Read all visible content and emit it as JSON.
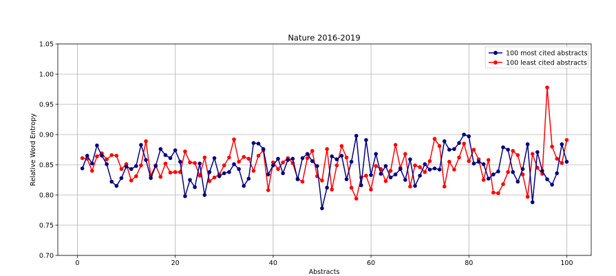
{
  "chart_data": {
    "type": "line",
    "title": "Nature 2016-2019",
    "xlabel": "Abstracts",
    "ylabel": "Relative Word Entropy",
    "xlim": [
      -4,
      105
    ],
    "ylim": [
      0.7,
      1.05
    ],
    "xticks": [
      0,
      20,
      40,
      60,
      80,
      100
    ],
    "yticks": [
      0.7,
      0.75,
      0.8,
      0.85,
      0.9,
      0.95,
      1.0,
      1.05
    ],
    "xtick_labels": [
      "0",
      "20",
      "40",
      "60",
      "80",
      "100"
    ],
    "ytick_labels": [
      "0.70",
      "0.75",
      "0.80",
      "0.85",
      "0.90",
      "0.95",
      "1.00",
      "1.05"
    ],
    "grid": true,
    "legend_position": "top-right",
    "series": [
      {
        "name": "100 most cited abstracts",
        "color": "#000080",
        "x": [
          1,
          2,
          3,
          4,
          5,
          6,
          7,
          8,
          9,
          10,
          11,
          12,
          13,
          14,
          15,
          16,
          17,
          18,
          19,
          20,
          21,
          22,
          23,
          24,
          25,
          26,
          27,
          28,
          29,
          30,
          31,
          32,
          33,
          34,
          35,
          36,
          37,
          38,
          39,
          40,
          41,
          42,
          43,
          44,
          45,
          46,
          47,
          48,
          49,
          50,
          51,
          52,
          53,
          54,
          55,
          56,
          57,
          58,
          59,
          60,
          61,
          62,
          63,
          64,
          65,
          66,
          67,
          68,
          69,
          70,
          71,
          72,
          73,
          74,
          75,
          76,
          77,
          78,
          79,
          80,
          81,
          82,
          83,
          84,
          85,
          86,
          87,
          88,
          89,
          90,
          91,
          92,
          93,
          94,
          95,
          96,
          97,
          98,
          99,
          100
        ],
        "y": [
          0.844,
          0.865,
          0.852,
          0.882,
          0.865,
          0.851,
          0.822,
          0.815,
          0.828,
          0.847,
          0.843,
          0.848,
          0.883,
          0.858,
          0.828,
          0.848,
          0.876,
          0.866,
          0.861,
          0.874,
          0.855,
          0.798,
          0.825,
          0.813,
          0.852,
          0.8,
          0.838,
          0.861,
          0.831,
          0.836,
          0.838,
          0.851,
          0.843,
          0.815,
          0.827,
          0.886,
          0.885,
          0.876,
          0.834,
          0.849,
          0.86,
          0.836,
          0.858,
          0.86,
          0.826,
          0.861,
          0.868,
          0.856,
          0.848,
          0.778,
          0.812,
          0.864,
          0.859,
          0.865,
          0.826,
          0.855,
          0.898,
          0.816,
          0.891,
          0.833,
          0.868,
          0.835,
          0.848,
          0.829,
          0.834,
          0.843,
          0.825,
          0.859,
          0.815,
          0.832,
          0.851,
          0.842,
          0.844,
          0.842,
          0.889,
          0.875,
          0.876,
          0.886,
          0.9,
          0.897,
          0.852,
          0.855,
          0.851,
          0.827,
          0.834,
          0.839,
          0.879,
          0.875,
          0.838,
          0.822,
          0.843,
          0.884,
          0.788,
          0.871,
          0.84,
          0.826,
          0.817,
          0.836,
          0.884,
          0.855
        ]
      },
      {
        "name": "100 least cited abstracts",
        "color": "#ff0000",
        "x": [
          1,
          2,
          3,
          4,
          5,
          6,
          7,
          8,
          9,
          10,
          11,
          12,
          13,
          14,
          15,
          16,
          17,
          18,
          19,
          20,
          21,
          22,
          23,
          24,
          25,
          26,
          27,
          28,
          29,
          30,
          31,
          32,
          33,
          34,
          35,
          36,
          37,
          38,
          39,
          40,
          41,
          42,
          43,
          44,
          45,
          46,
          47,
          48,
          49,
          50,
          51,
          52,
          53,
          54,
          55,
          56,
          57,
          58,
          59,
          60,
          61,
          62,
          63,
          64,
          65,
          66,
          67,
          68,
          69,
          70,
          71,
          72,
          73,
          74,
          75,
          76,
          77,
          78,
          79,
          80,
          81,
          82,
          83,
          84,
          85,
          86,
          87,
          88,
          89,
          90,
          91,
          92,
          93,
          94,
          95,
          96,
          97,
          98,
          99,
          100
        ],
        "y": [
          0.861,
          0.86,
          0.84,
          0.864,
          0.869,
          0.859,
          0.866,
          0.865,
          0.843,
          0.851,
          0.824,
          0.831,
          0.849,
          0.889,
          0.832,
          0.849,
          0.83,
          0.852,
          0.837,
          0.838,
          0.838,
          0.872,
          0.854,
          0.853,
          0.832,
          0.862,
          0.823,
          0.829,
          0.834,
          0.849,
          0.862,
          0.892,
          0.855,
          0.863,
          0.86,
          0.84,
          0.865,
          0.874,
          0.808,
          0.854,
          0.843,
          0.854,
          0.861,
          0.853,
          0.827,
          0.822,
          0.861,
          0.873,
          0.831,
          0.824,
          0.876,
          0.809,
          0.849,
          0.881,
          0.862,
          0.812,
          0.794,
          0.829,
          0.832,
          0.809,
          0.848,
          0.843,
          0.823,
          0.84,
          0.883,
          0.845,
          0.868,
          0.814,
          0.849,
          0.846,
          0.838,
          0.856,
          0.893,
          0.881,
          0.814,
          0.855,
          0.842,
          0.862,
          0.885,
          0.856,
          0.875,
          0.859,
          0.825,
          0.858,
          0.804,
          0.803,
          0.818,
          0.838,
          0.873,
          0.866,
          0.834,
          0.797,
          0.868,
          0.845,
          0.835,
          0.978,
          0.88,
          0.86,
          0.853,
          0.891
        ]
      }
    ]
  }
}
